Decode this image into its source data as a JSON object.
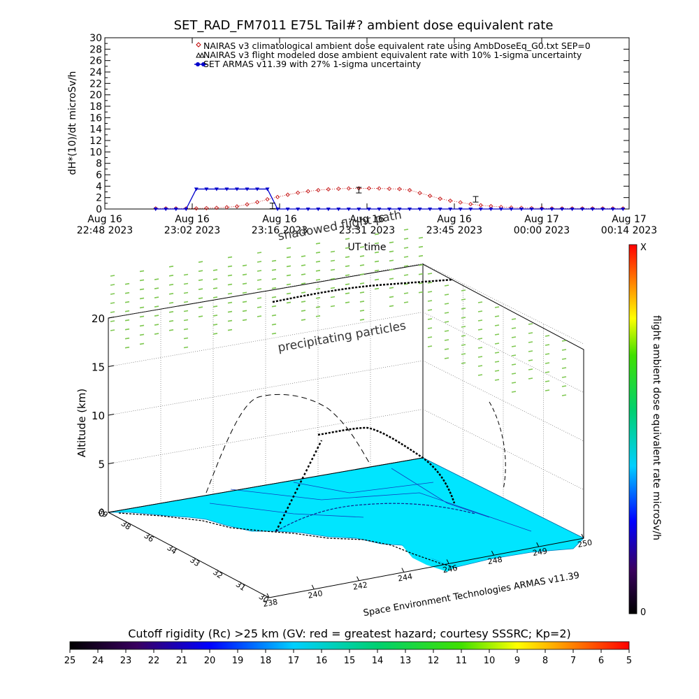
{
  "top_chart": {
    "title": "SET_RAD_FM7011  E75L Tail#? ambient dose equivalent rate",
    "ylabel": "dH*(10)/dt microSv/h",
    "xlabel": "UT time",
    "ylim": [
      0,
      30
    ],
    "y_ticks": [
      "0",
      "2",
      "4",
      "6",
      "8",
      "10",
      "12",
      "14",
      "16",
      "18",
      "20",
      "22",
      "24",
      "26",
      "28",
      "30"
    ],
    "x_ticks": [
      {
        "line1": "Aug 16",
        "line2": "22:48 2023"
      },
      {
        "line1": "Aug 16",
        "line2": "23:02 2023"
      },
      {
        "line1": "Aug 16",
        "line2": "23:16 2023"
      },
      {
        "line1": "Aug 16",
        "line2": "23:31 2023"
      },
      {
        "line1": "Aug 16",
        "line2": "23:45 2023"
      },
      {
        "line1": "Aug 17",
        "line2": "00:00 2023"
      },
      {
        "line1": "Aug 17",
        "line2": "00:14 2023"
      }
    ],
    "legend": [
      {
        "symbol": "diamond",
        "color": "#c00000",
        "label": "NAIRAS v3 climatological ambient dose equivalent rate using AmbDoseEq_G0.txt SEP=0"
      },
      {
        "symbol": "triangle",
        "color": "#000000",
        "label": "NAIRAS v3 flight modeled dose ambient equivalent rate with 10% 1-sigma uncertainty"
      },
      {
        "symbol": "circle",
        "color": "#0000cc",
        "label": "SET ARMAS v11.39 with 27% 1-sigma uncertainty"
      }
    ]
  },
  "chart_data": [
    {
      "type": "line",
      "title": "SET_RAD_FM7011  E75L Tail#? ambient dose equivalent rate",
      "xlabel": "UT time",
      "ylabel": "dH*(10)/dt microSv/h",
      "x_unit": "minutes after Aug 16 22:48 UT",
      "ylim": [
        0,
        30
      ],
      "x": [
        10,
        12,
        14,
        16,
        18,
        20,
        22,
        24,
        26,
        28,
        30,
        32,
        34,
        36,
        38,
        40,
        42,
        44,
        46,
        48,
        50,
        52,
        54,
        56,
        58,
        60,
        62,
        64,
        66,
        68,
        70,
        72,
        74,
        76,
        78,
        80,
        82,
        84,
        86,
        88,
        90,
        92,
        94,
        96,
        98,
        100,
        102
      ],
      "series": [
        {
          "name": "NAIRAS v3 climatological ambient dose equivalent rate using AmbDoseEq_G0.txt SEP=0",
          "values": [
            0.1,
            0.1,
            0.1,
            0.1,
            0.1,
            0.15,
            0.2,
            0.3,
            0.45,
            0.8,
            1.2,
            1.7,
            2.1,
            2.5,
            2.85,
            3.1,
            3.3,
            3.45,
            3.55,
            3.6,
            3.62,
            3.62,
            3.6,
            3.55,
            3.5,
            3.3,
            2.8,
            2.3,
            1.8,
            1.45,
            1.15,
            0.85,
            0.65,
            0.5,
            0.35,
            0.25,
            0.2,
            0.15,
            0.12,
            0.1,
            0.1,
            0.1,
            0.1,
            0.1,
            0.1,
            0.1,
            0.1
          ]
        },
        {
          "name": "NAIRAS v3 flight modeled dose ambient equivalent rate with 10% 1-sigma uncertainty",
          "points": [
            [
              33,
              0.55
            ],
            [
              50,
              3.3
            ],
            [
              73,
              1.7
            ]
          ]
        },
        {
          "name": "SET ARMAS v11.39 with 27% 1-sigma uncertainty",
          "values": [
            0,
            0,
            0,
            0,
            3.5,
            3.5,
            3.5,
            3.5,
            3.5,
            3.5,
            3.5,
            3.5,
            0,
            0,
            0,
            0,
            0,
            0,
            0,
            0,
            0,
            0,
            0,
            0,
            0,
            0,
            0,
            0,
            0,
            0,
            0,
            0,
            0,
            0,
            0,
            0,
            0,
            0,
            0,
            0,
            0,
            0,
            0,
            0,
            0,
            0,
            0
          ]
        }
      ]
    },
    {
      "type": "scatter",
      "xlabel": "",
      "ylabel": "",
      "zlabel": "Altitude (km)",
      "zlim": [
        0,
        20
      ],
      "z_ticks": [
        "0",
        "5",
        "10",
        "15",
        "20"
      ],
      "lat_ticks": [
        "30",
        "31",
        "32",
        "33",
        "34",
        "36",
        "38",
        "39"
      ],
      "lon_ticks": [
        "238",
        "240",
        "242",
        "244",
        "246",
        "248",
        "249",
        "250"
      ],
      "annotations": [
        "shadowed flight path",
        "precipitating particles"
      ],
      "colorbar": {
        "label": "flight ambient dose equivalent rate microSv/h",
        "min": "0",
        "max": "X"
      }
    }
  ],
  "scene": {
    "credit": "Space Environment Technologies ARMAS v11.39",
    "cutoff_title": "Cutoff rigidity (Rc) >25 km (GV: red = greatest hazard; courtesy SSSRC; Kp=2)",
    "cutoff_ticks": [
      "25",
      "24",
      "23",
      "22",
      "21",
      "20",
      "19",
      "18",
      "17",
      "16",
      "15",
      "14",
      "13",
      "12",
      "11",
      "10",
      "9",
      "8",
      "7",
      "6",
      "5"
    ]
  },
  "colors": {
    "climatological": "#c00000",
    "measured": "#0000cc",
    "surface": "#00e5ff",
    "particles": "#7ec850"
  }
}
